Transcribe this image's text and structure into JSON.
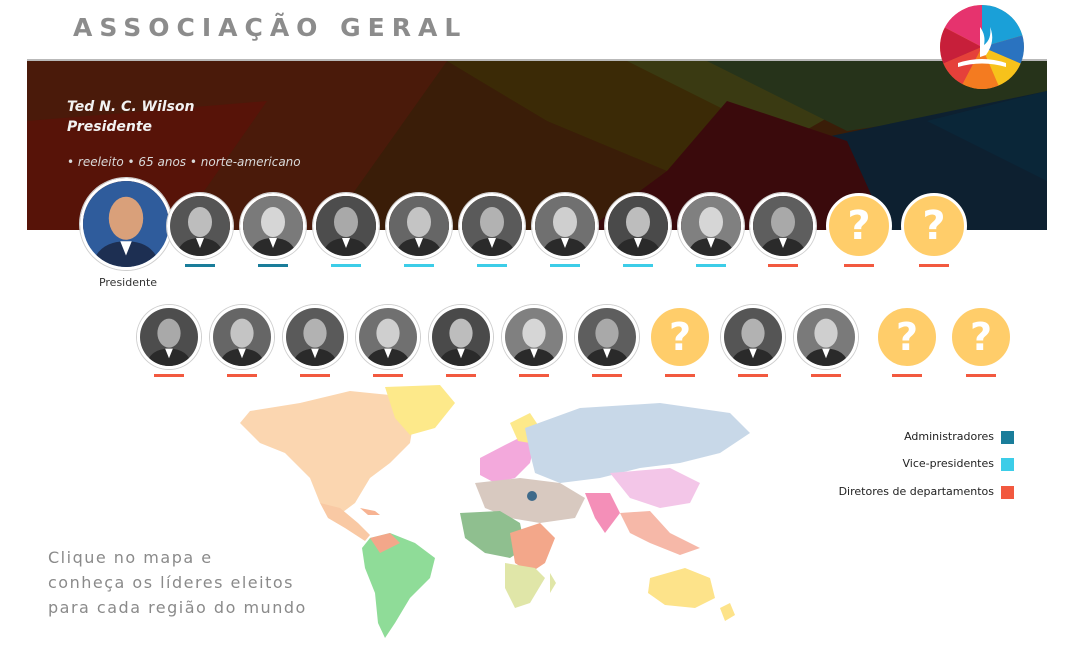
{
  "header": {
    "title": "ASSOCIAÇÃO GERAL"
  },
  "president": {
    "name": "Ted N. C. Wilson",
    "role": "Presidente",
    "info": "• reeleito • 65 anos • norte-americano",
    "caption": "Presidente"
  },
  "legend": {
    "items": [
      {
        "label": "Administradores",
        "color": "#1a7d9a"
      },
      {
        "label": "Vice-presidentes",
        "color": "#3ccde8"
      },
      {
        "label": "Diretores de departamentos",
        "color": "#f2593f"
      }
    ]
  },
  "leaders": {
    "row1": [
      {
        "kind": "photo",
        "category": "admin"
      },
      {
        "kind": "photo",
        "category": "admin"
      },
      {
        "kind": "photo",
        "category": "vp"
      },
      {
        "kind": "photo",
        "category": "vp"
      },
      {
        "kind": "photo",
        "category": "vp"
      },
      {
        "kind": "photo",
        "category": "vp"
      },
      {
        "kind": "photo",
        "category": "vp"
      },
      {
        "kind": "photo",
        "category": "vp"
      },
      {
        "kind": "photo",
        "category": "dir"
      },
      {
        "kind": "unknown",
        "category": "dir",
        "mark": "?"
      },
      {
        "kind": "unknown",
        "category": "dir",
        "mark": "?"
      }
    ],
    "row2": [
      {
        "kind": "photo",
        "category": "dir"
      },
      {
        "kind": "photo",
        "category": "dir"
      },
      {
        "kind": "photo",
        "category": "dir"
      },
      {
        "kind": "photo",
        "category": "dir"
      },
      {
        "kind": "photo",
        "category": "dir"
      },
      {
        "kind": "photo",
        "category": "dir"
      },
      {
        "kind": "photo",
        "category": "dir"
      },
      {
        "kind": "unknown",
        "category": "dir",
        "mark": "?"
      },
      {
        "kind": "photo",
        "category": "dir"
      },
      {
        "kind": "photo",
        "category": "dir"
      },
      {
        "kind": "unknown",
        "category": "dir",
        "mark": "?"
      },
      {
        "kind": "unknown",
        "category": "dir",
        "mark": "?"
      }
    ]
  },
  "cta": {
    "line1": "Clique no mapa e",
    "line2": "conheça os líderes eleitos",
    "line3": "para cada região do mundo"
  },
  "colors": {
    "admin": "#1a7d9a",
    "vp": "#3ccde8",
    "dir": "#f2593f",
    "unknown_fill": "#ffcd6a"
  }
}
